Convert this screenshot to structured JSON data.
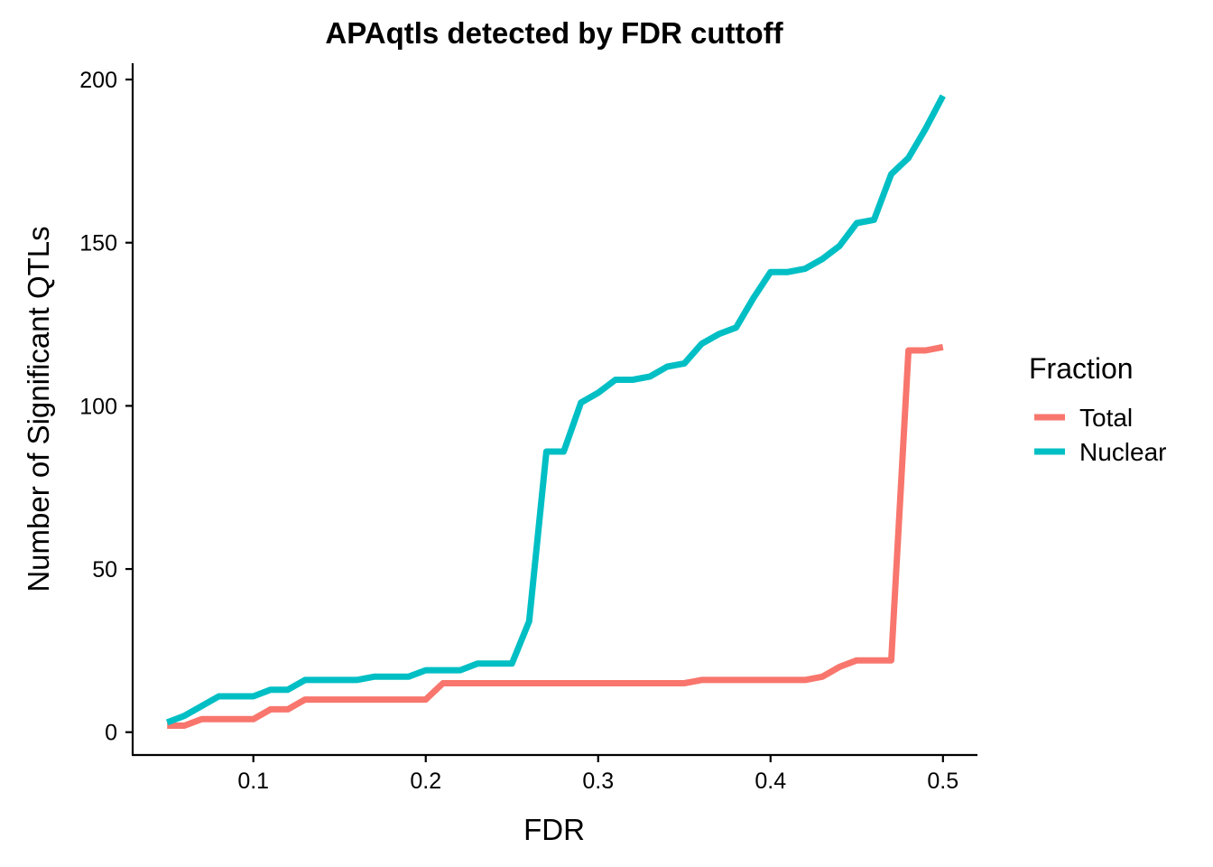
{
  "chart_data": {
    "type": "line",
    "title": "APAqtls detected by FDR cuttoff",
    "xlabel": "FDR",
    "ylabel": "Number of Significant QTLs",
    "xlim": [
      0.03,
      0.52
    ],
    "ylim": [
      -7,
      205
    ],
    "x_ticks": [
      0.1,
      0.2,
      0.3,
      0.4,
      0.5
    ],
    "x_tick_labels": [
      "0.1",
      "0.2",
      "0.3",
      "0.4",
      "0.5"
    ],
    "y_ticks": [
      0,
      50,
      100,
      150,
      200
    ],
    "y_tick_labels": [
      "0",
      "50",
      "100",
      "150",
      "200"
    ],
    "grid": false,
    "legend": {
      "title": "Fraction",
      "placement": "right"
    },
    "x": [
      0.05,
      0.06,
      0.07,
      0.08,
      0.09,
      0.1,
      0.11,
      0.12,
      0.13,
      0.14,
      0.15,
      0.16,
      0.17,
      0.18,
      0.19,
      0.2,
      0.21,
      0.22,
      0.23,
      0.24,
      0.25,
      0.26,
      0.27,
      0.28,
      0.29,
      0.3,
      0.31,
      0.32,
      0.33,
      0.34,
      0.35,
      0.36,
      0.37,
      0.38,
      0.39,
      0.4,
      0.41,
      0.42,
      0.43,
      0.44,
      0.45,
      0.46,
      0.47,
      0.48,
      0.49,
      0.5
    ],
    "series": [
      {
        "name": "Total",
        "color": "#F8766D",
        "values": [
          2,
          2,
          4,
          4,
          4,
          4,
          7,
          7,
          10,
          10,
          10,
          10,
          10,
          10,
          10,
          10,
          15,
          15,
          15,
          15,
          15,
          15,
          15,
          15,
          15,
          15,
          15,
          15,
          15,
          15,
          15,
          16,
          16,
          16,
          16,
          16,
          16,
          16,
          17,
          20,
          22,
          22,
          22,
          117,
          117,
          118
        ]
      },
      {
        "name": "Nuclear",
        "color": "#00BFC4",
        "values": [
          3,
          5,
          8,
          11,
          11,
          11,
          13,
          13,
          16,
          16,
          16,
          16,
          17,
          17,
          17,
          19,
          19,
          19,
          21,
          21,
          21,
          34,
          86,
          86,
          101,
          104,
          108,
          108,
          109,
          112,
          113,
          119,
          122,
          124,
          133,
          141,
          141,
          142,
          145,
          149,
          156,
          157,
          171,
          176,
          185,
          195
        ]
      }
    ]
  }
}
